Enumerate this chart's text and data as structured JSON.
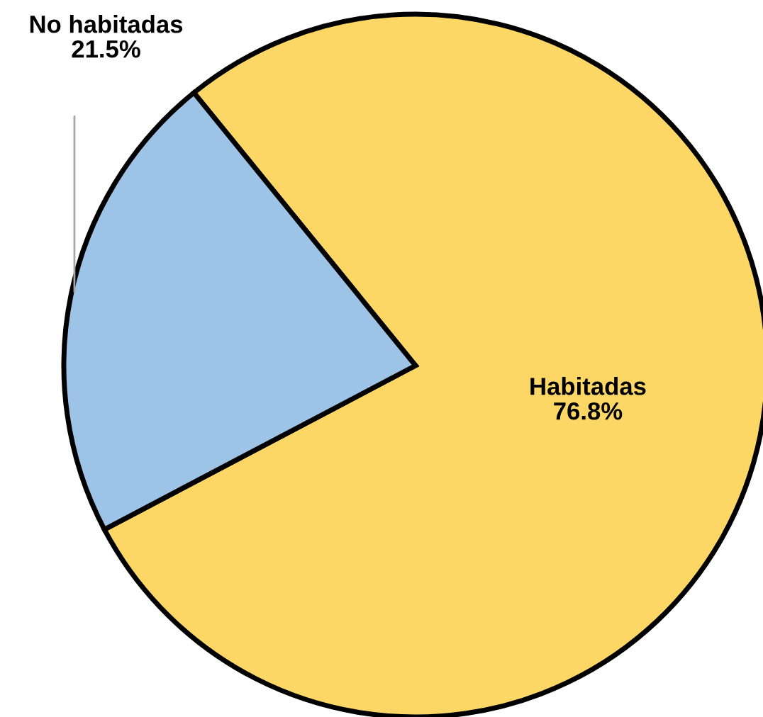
{
  "chart_data": {
    "type": "pie",
    "categories": [
      "Habitadas",
      "No habitadas"
    ],
    "values": [
      76.8,
      21.5
    ],
    "colors": [
      "#fdd766",
      "#9dc3e6"
    ],
    "value_labels": [
      "76.8%",
      "21.5%"
    ],
    "legend": false
  }
}
